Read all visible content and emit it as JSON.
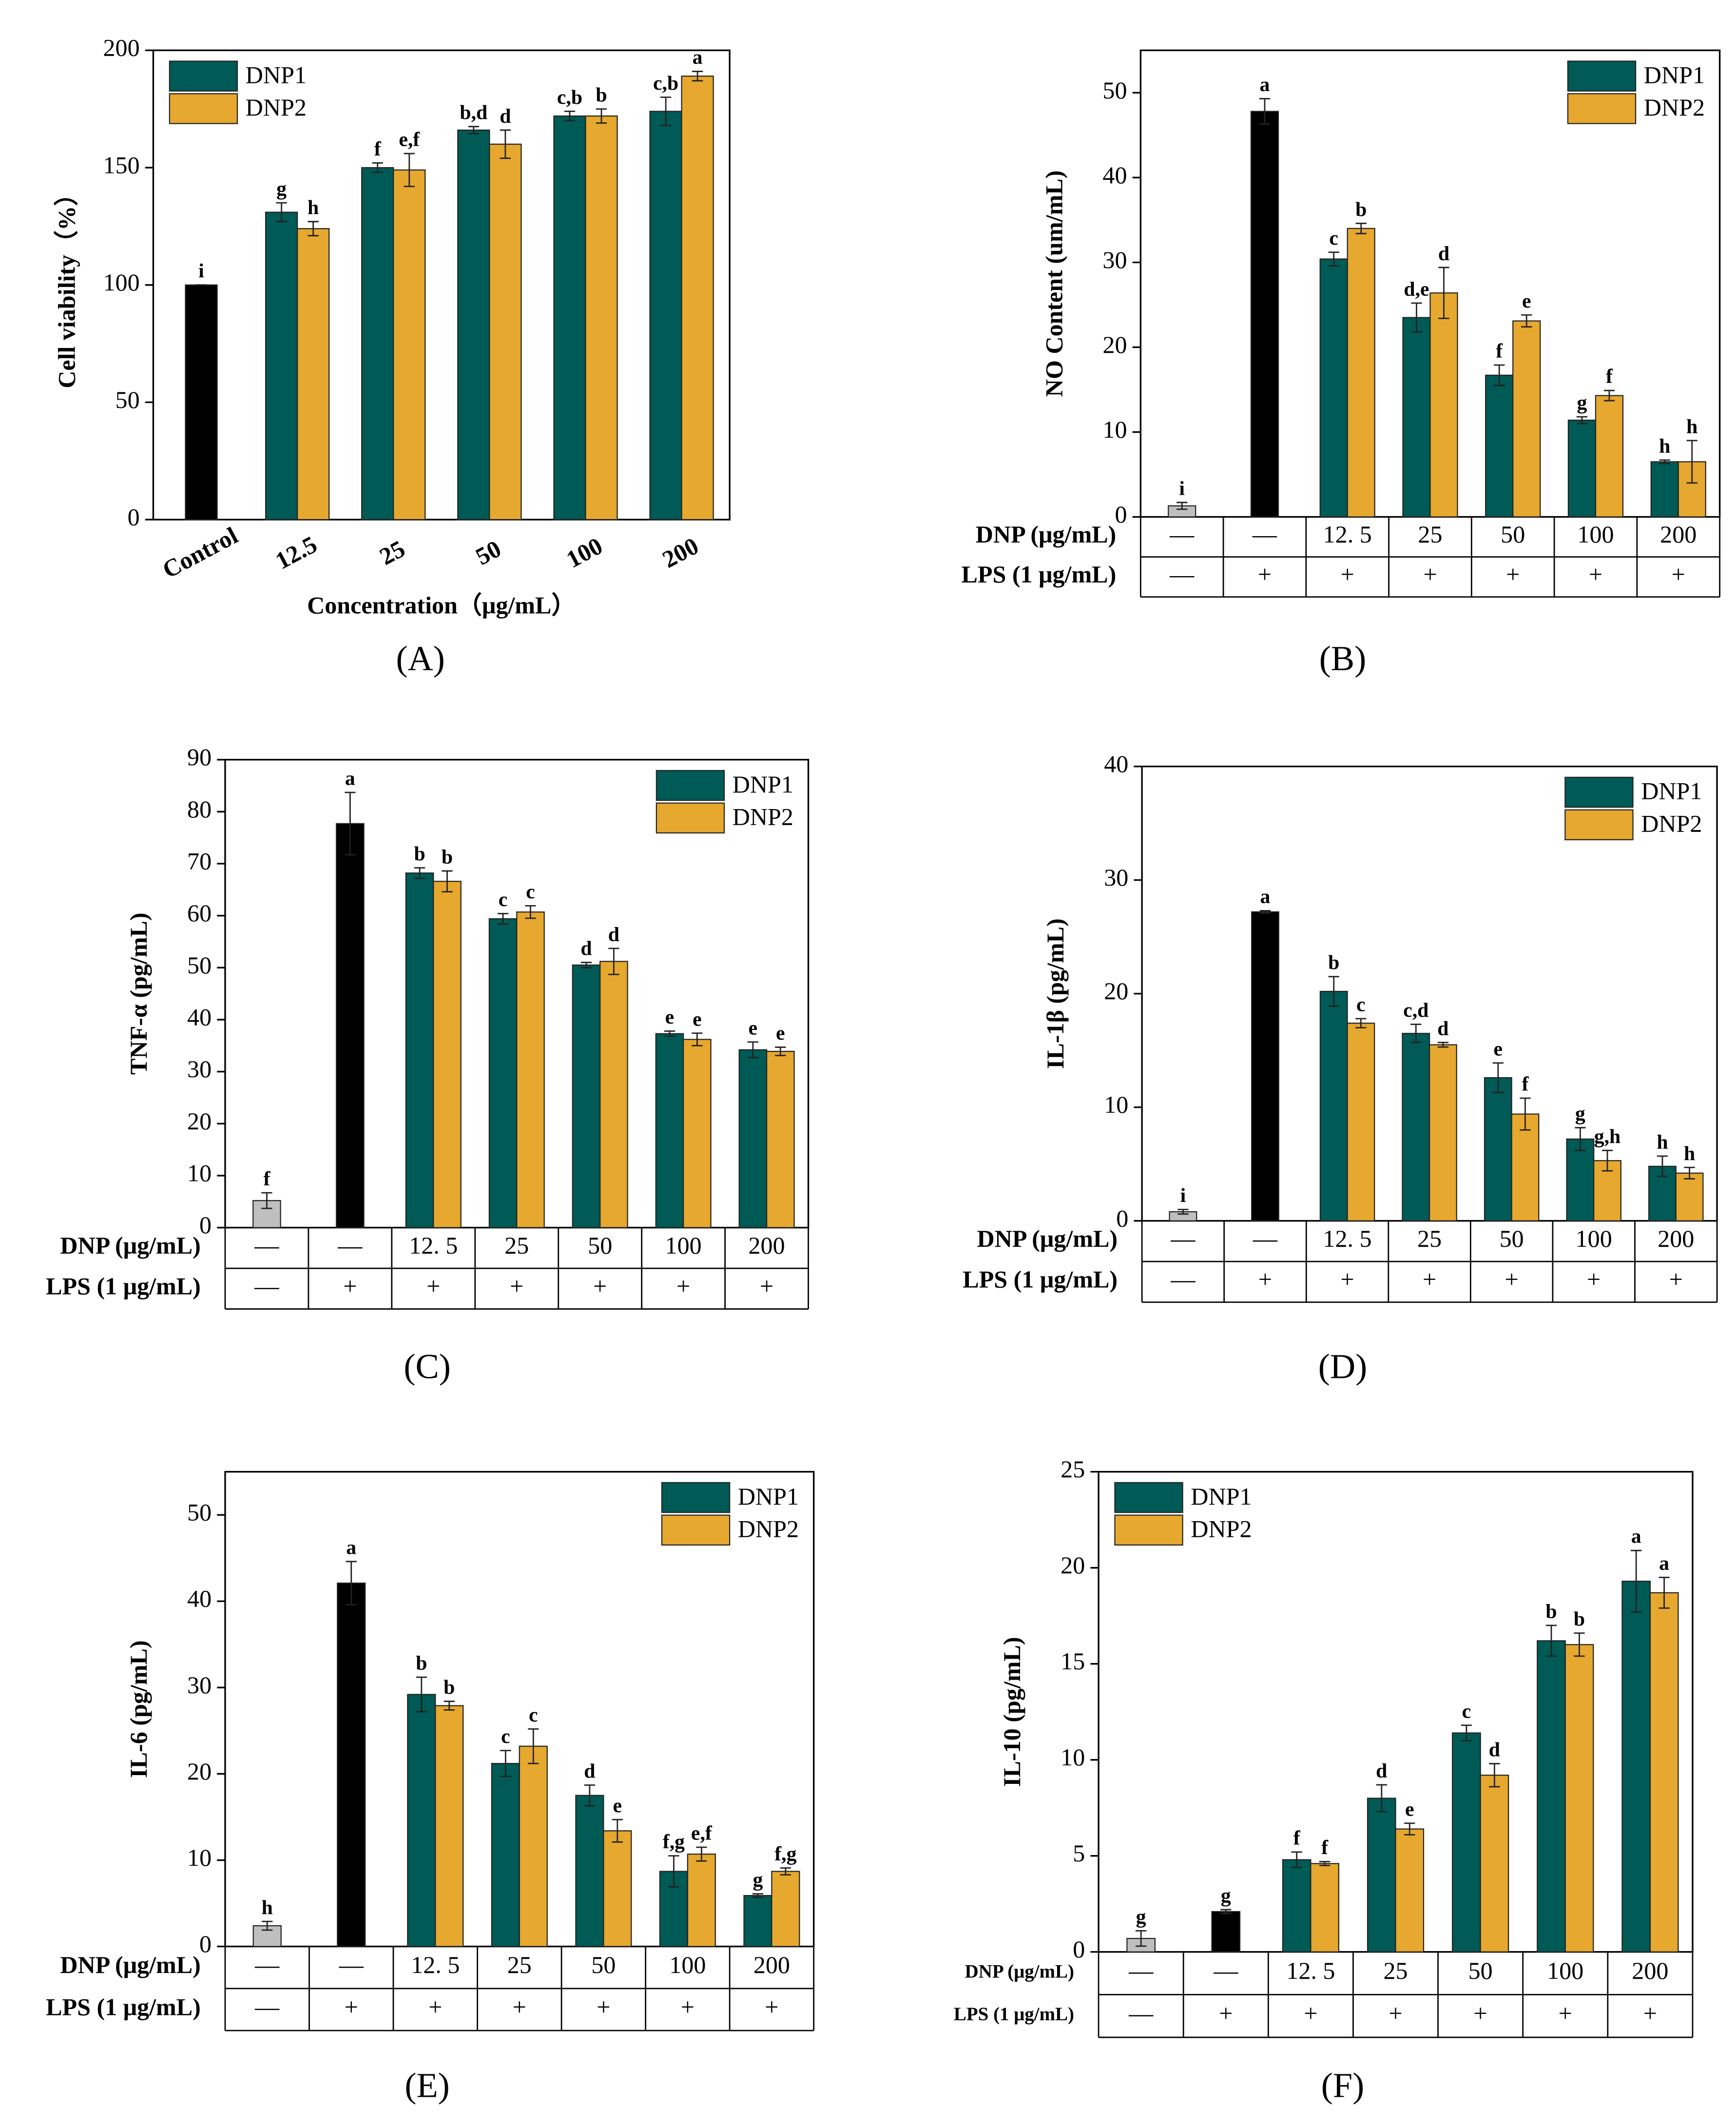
{
  "chart_data": [
    {
      "type": "bar",
      "panel_label": "(A)",
      "y_label": "Cell viability（%）",
      "x_label": "Concentration（μg/mL）",
      "categories": [
        "Control",
        "12.5",
        "25",
        "50",
        "100",
        "200"
      ],
      "ylim": [
        0,
        200
      ],
      "yticks": [
        0,
        50,
        100,
        150,
        200
      ],
      "legend": "upper left",
      "series": [
        {
          "color": "#000000",
          "values": [
            100,
            null,
            null,
            null,
            null,
            null
          ],
          "errors": [
            0,
            null,
            null,
            null,
            null,
            null
          ],
          "labels": [
            "i",
            null,
            null,
            null,
            null,
            null
          ]
        },
        {
          "name": "DNP1",
          "color": "#005a55",
          "values": [
            null,
            131,
            150,
            166,
            172,
            174
          ],
          "errors": [
            null,
            4,
            2,
            1.5,
            2,
            6
          ],
          "labels": [
            null,
            "g",
            "f",
            "b,d",
            "c,b",
            "c,b"
          ]
        },
        {
          "name": "DNP2",
          "color": "#e6a82e",
          "values": [
            null,
            124,
            149,
            160,
            172,
            189
          ],
          "errors": [
            null,
            3,
            7,
            6,
            3,
            2
          ],
          "labels": [
            null,
            "h",
            "e,f",
            "d",
            "b",
            "a"
          ]
        }
      ]
    },
    {
      "type": "bar",
      "panel_label": "(B)",
      "y_label": "NO Content (um/mL)",
      "table_rows": [
        {
          "label": "DNP (μg/mL)",
          "cells": [
            "—",
            "—",
            "12. 5",
            "25",
            "50",
            "100",
            "200"
          ]
        },
        {
          "label": "LPS (1 μg/mL)",
          "cells": [
            "—",
            "+",
            "+",
            "+",
            "+",
            "+",
            "+"
          ]
        }
      ],
      "ylim": [
        0,
        55
      ],
      "yticks": [
        0,
        10,
        20,
        30,
        40,
        50
      ],
      "legend": "upper right",
      "series": [
        {
          "color": "#bfbfbf",
          "values": [
            1.3,
            null,
            null,
            null,
            null,
            null,
            null
          ],
          "errors": [
            0.4,
            null,
            null,
            null,
            null,
            null,
            null
          ],
          "labels": [
            "i",
            null,
            null,
            null,
            null,
            null,
            null
          ]
        },
        {
          "color": "#000000",
          "values": [
            null,
            47.8,
            null,
            null,
            null,
            null,
            null
          ],
          "errors": [
            null,
            1.5,
            null,
            null,
            null,
            null,
            null
          ],
          "labels": [
            null,
            "a",
            null,
            null,
            null,
            null,
            null
          ]
        },
        {
          "name": "DNP1",
          "color": "#005a55",
          "values": [
            null,
            null,
            30.4,
            23.5,
            16.7,
            11.4,
            6.5
          ],
          "errors": [
            null,
            null,
            0.8,
            1.7,
            1.2,
            0.4,
            0.2
          ],
          "labels": [
            null,
            null,
            "c",
            "d,e",
            "f",
            "g",
            "h"
          ]
        },
        {
          "name": "DNP2",
          "color": "#e6a82e",
          "values": [
            null,
            null,
            34.0,
            26.4,
            23.1,
            14.3,
            6.5
          ],
          "errors": [
            null,
            null,
            0.6,
            3,
            0.7,
            0.6,
            2.5
          ],
          "labels": [
            null,
            null,
            "b",
            "d",
            "e",
            "f",
            "h"
          ]
        }
      ]
    },
    {
      "type": "bar",
      "panel_label": "(C)",
      "y_label": "TNF-α (pg/mL)",
      "table_rows": [
        {
          "label": "DNP (μg/mL)",
          "cells": [
            "—",
            "—",
            "12. 5",
            "25",
            "50",
            "100",
            "200"
          ]
        },
        {
          "label": "LPS (1 μg/mL)",
          "cells": [
            "—",
            "+",
            "+",
            "+",
            "+",
            "+",
            "+"
          ]
        }
      ],
      "ylim": [
        0,
        90
      ],
      "yticks": [
        0,
        10,
        20,
        30,
        40,
        50,
        60,
        70,
        80,
        90
      ],
      "legend": "upper right",
      "series": [
        {
          "color": "#bfbfbf",
          "values": [
            5.2,
            null,
            null,
            null,
            null,
            null,
            null
          ],
          "errors": [
            1.5,
            null,
            null,
            null,
            null,
            null,
            null
          ],
          "labels": [
            "f",
            null,
            null,
            null,
            null,
            null,
            null
          ]
        },
        {
          "color": "#000000",
          "values": [
            null,
            77.7,
            null,
            null,
            null,
            null,
            null
          ],
          "errors": [
            null,
            6,
            null,
            null,
            null,
            null,
            null
          ],
          "labels": [
            null,
            "a",
            null,
            null,
            null,
            null,
            null
          ]
        },
        {
          "name": "DNP1",
          "color": "#005a55",
          "values": [
            null,
            null,
            68.2,
            59.4,
            50.5,
            37.3,
            34.2
          ],
          "errors": [
            null,
            null,
            1,
            1,
            0.5,
            0.5,
            1.5
          ],
          "labels": [
            null,
            null,
            "b",
            "c",
            "d",
            "e",
            "e"
          ]
        },
        {
          "name": "DNP2",
          "color": "#e6a82e",
          "values": [
            null,
            null,
            66.6,
            60.7,
            51.2,
            36.2,
            33.9
          ],
          "errors": [
            null,
            null,
            2,
            1.2,
            2.5,
            1.2,
            0.8
          ],
          "labels": [
            null,
            null,
            "b",
            "c",
            "d",
            "e",
            "e"
          ]
        }
      ]
    },
    {
      "type": "bar",
      "panel_label": "(D)",
      "y_label": "IL-1β (pg/mL)",
      "table_rows": [
        {
          "label": "DNP (μg/mL)",
          "cells": [
            "—",
            "—",
            "12. 5",
            "25",
            "50",
            "100",
            "200"
          ]
        },
        {
          "label": "LPS (1 μg/mL)",
          "cells": [
            "—",
            "+",
            "+",
            "+",
            "+",
            "+",
            "+"
          ]
        }
      ],
      "ylim": [
        0,
        40
      ],
      "yticks": [
        0,
        10,
        20,
        30,
        40
      ],
      "legend": "upper right",
      "series": [
        {
          "color": "#bfbfbf",
          "values": [
            0.8,
            null,
            null,
            null,
            null,
            null,
            null
          ],
          "errors": [
            0.2,
            null,
            null,
            null,
            null,
            null,
            null
          ],
          "labels": [
            "i",
            null,
            null,
            null,
            null,
            null,
            null
          ]
        },
        {
          "color": "#000000",
          "values": [
            null,
            27.2,
            null,
            null,
            null,
            null,
            null
          ],
          "errors": [
            null,
            0.1,
            null,
            null,
            null,
            null,
            null
          ],
          "labels": [
            null,
            "a",
            null,
            null,
            null,
            null,
            null
          ]
        },
        {
          "name": "DNP1",
          "color": "#005a55",
          "values": [
            null,
            null,
            20.2,
            16.5,
            12.6,
            7.2,
            4.8
          ],
          "errors": [
            null,
            null,
            1.3,
            0.8,
            1.3,
            1,
            0.9
          ],
          "labels": [
            null,
            null,
            "b",
            "c,d",
            "e",
            "g",
            "h"
          ]
        },
        {
          "name": "DNP2",
          "color": "#e6a82e",
          "values": [
            null,
            null,
            17.4,
            15.5,
            9.4,
            5.3,
            4.2
          ],
          "errors": [
            null,
            null,
            0.4,
            0.2,
            1.4,
            0.9,
            0.5
          ],
          "labels": [
            null,
            null,
            "c",
            "d",
            "f",
            "g,h",
            "h"
          ]
        }
      ]
    },
    {
      "type": "bar",
      "panel_label": "(E)",
      "y_label": "IL-6 (pg/mL)",
      "table_rows": [
        {
          "label": "DNP (μg/mL)",
          "cells": [
            "—",
            "—",
            "12. 5",
            "25",
            "50",
            "100",
            "200"
          ]
        },
        {
          "label": "LPS (1 μg/mL)",
          "cells": [
            "—",
            "+",
            "+",
            "+",
            "+",
            "+",
            "+"
          ]
        }
      ],
      "ylim": [
        0,
        55
      ],
      "yticks": [
        0,
        10,
        20,
        30,
        40,
        50
      ],
      "legend": "upper right",
      "series": [
        {
          "color": "#bfbfbf",
          "values": [
            2.4,
            null,
            null,
            null,
            null,
            null,
            null
          ],
          "errors": [
            0.5,
            null,
            null,
            null,
            null,
            null,
            null
          ],
          "labels": [
            "h",
            null,
            null,
            null,
            null,
            null,
            null
          ]
        },
        {
          "color": "#000000",
          "values": [
            null,
            42.1,
            null,
            null,
            null,
            null,
            null
          ],
          "errors": [
            null,
            2.5,
            null,
            null,
            null,
            null,
            null
          ],
          "labels": [
            null,
            "a",
            null,
            null,
            null,
            null,
            null
          ]
        },
        {
          "name": "DNP1",
          "color": "#005a55",
          "values": [
            null,
            null,
            29.2,
            21.2,
            17.5,
            8.7,
            5.9
          ],
          "errors": [
            null,
            null,
            2,
            1.5,
            1.2,
            1.8,
            0.2
          ],
          "labels": [
            null,
            null,
            "b",
            "c",
            "d",
            "f,g",
            "g"
          ]
        },
        {
          "name": "DNP2",
          "color": "#e6a82e",
          "values": [
            null,
            null,
            27.9,
            23.2,
            13.4,
            10.7,
            8.7
          ],
          "errors": [
            null,
            null,
            0.5,
            2,
            1.3,
            0.8,
            0.4
          ],
          "labels": [
            null,
            null,
            "b",
            "c",
            "e",
            "e,f",
            "f,g"
          ]
        }
      ]
    },
    {
      "type": "bar",
      "panel_label": "(F)",
      "y_label": "IL-10 (pg/mL)",
      "table_rows": [
        {
          "label": "DNP (μg/mL)",
          "cells": [
            "—",
            "—",
            "12. 5",
            "25",
            "50",
            "100",
            "200"
          ]
        },
        {
          "label": "LPS (1 μg/mL)",
          "cells": [
            "—",
            "+",
            "+",
            "+",
            "+",
            "+",
            "+"
          ]
        }
      ],
      "ylim": [
        0,
        25
      ],
      "yticks": [
        0,
        5,
        10,
        15,
        20,
        25
      ],
      "legend": "upper left",
      "series": [
        {
          "color": "#bfbfbf",
          "values": [
            0.7,
            null,
            null,
            null,
            null,
            null,
            null
          ],
          "errors": [
            0.4,
            null,
            null,
            null,
            null,
            null,
            null
          ],
          "labels": [
            "g",
            null,
            null,
            null,
            null,
            null,
            null
          ]
        },
        {
          "color": "#000000",
          "values": [
            null,
            2.1,
            null,
            null,
            null,
            null,
            null
          ],
          "errors": [
            null,
            0.1,
            null,
            null,
            null,
            null,
            null
          ],
          "labels": [
            null,
            "g",
            null,
            null,
            null,
            null,
            null
          ]
        },
        {
          "name": "DNP1",
          "color": "#005a55",
          "values": [
            null,
            null,
            4.8,
            8.0,
            11.4,
            16.2,
            19.3
          ],
          "errors": [
            null,
            null,
            0.4,
            0.7,
            0.4,
            0.8,
            1.6
          ],
          "labels": [
            null,
            null,
            "f",
            "d",
            "c",
            "b",
            "a"
          ]
        },
        {
          "name": "DNP2",
          "color": "#e6a82e",
          "values": [
            null,
            null,
            4.6,
            6.4,
            9.2,
            16.0,
            18.7
          ],
          "errors": [
            null,
            null,
            0.1,
            0.3,
            0.6,
            0.6,
            0.8
          ],
          "labels": [
            null,
            null,
            "f",
            "e",
            "d",
            "b",
            "a"
          ]
        }
      ]
    }
  ]
}
